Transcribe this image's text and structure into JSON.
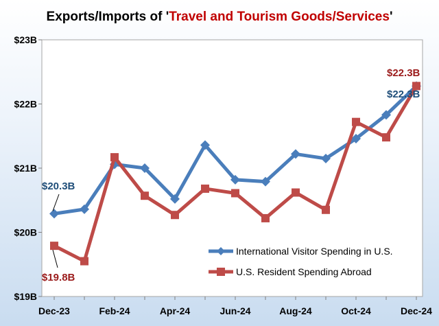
{
  "chart_data": {
    "type": "line",
    "title": {
      "prefix": "Exports/Imports of '",
      "highlight": "Travel and Tourism Goods/Services",
      "suffix": "'"
    },
    "x": [
      "Dec-23",
      "Jan-24",
      "Feb-24",
      "Mar-24",
      "Apr-24",
      "May-24",
      "Jun-24",
      "Jul-24",
      "Aug-24",
      "Sep-24",
      "Oct-24",
      "Nov-24",
      "Dec-24"
    ],
    "x_tick_labels": [
      "Dec-23",
      "Feb-24",
      "Apr-24",
      "Jun-24",
      "Aug-24",
      "Oct-24",
      "Dec-24"
    ],
    "y_ticks": [
      19,
      20,
      21,
      22,
      23
    ],
    "y_tick_labels": [
      "$19B",
      "$20B",
      "$21B",
      "$22B",
      "$23B"
    ],
    "ylim": [
      19,
      23
    ],
    "grid": false,
    "legend_position": "lower-right",
    "series": [
      {
        "name": "International Visitor Spending in U.S.",
        "color": "#4a7ebb",
        "marker": "diamond",
        "values": [
          20.29,
          20.36,
          21.06,
          21.0,
          20.52,
          21.36,
          20.82,
          20.79,
          21.22,
          21.15,
          21.46,
          21.83,
          22.28
        ]
      },
      {
        "name": "U.S. Resident Spending Abroad",
        "color": "#be4b48",
        "marker": "square",
        "values": [
          19.79,
          19.55,
          21.17,
          20.57,
          20.27,
          20.68,
          20.61,
          20.22,
          20.62,
          20.35,
          21.72,
          21.48,
          22.28
        ]
      }
    ],
    "annotations": [
      {
        "text": "$20.3B",
        "color": "#1f4e79"
      },
      {
        "text": "$19.8B",
        "color": "#9b1b1b"
      },
      {
        "text": "$22.3B",
        "color": "#9b1b1b"
      },
      {
        "text": "$22.3B",
        "color": "#1f4e79"
      }
    ]
  }
}
